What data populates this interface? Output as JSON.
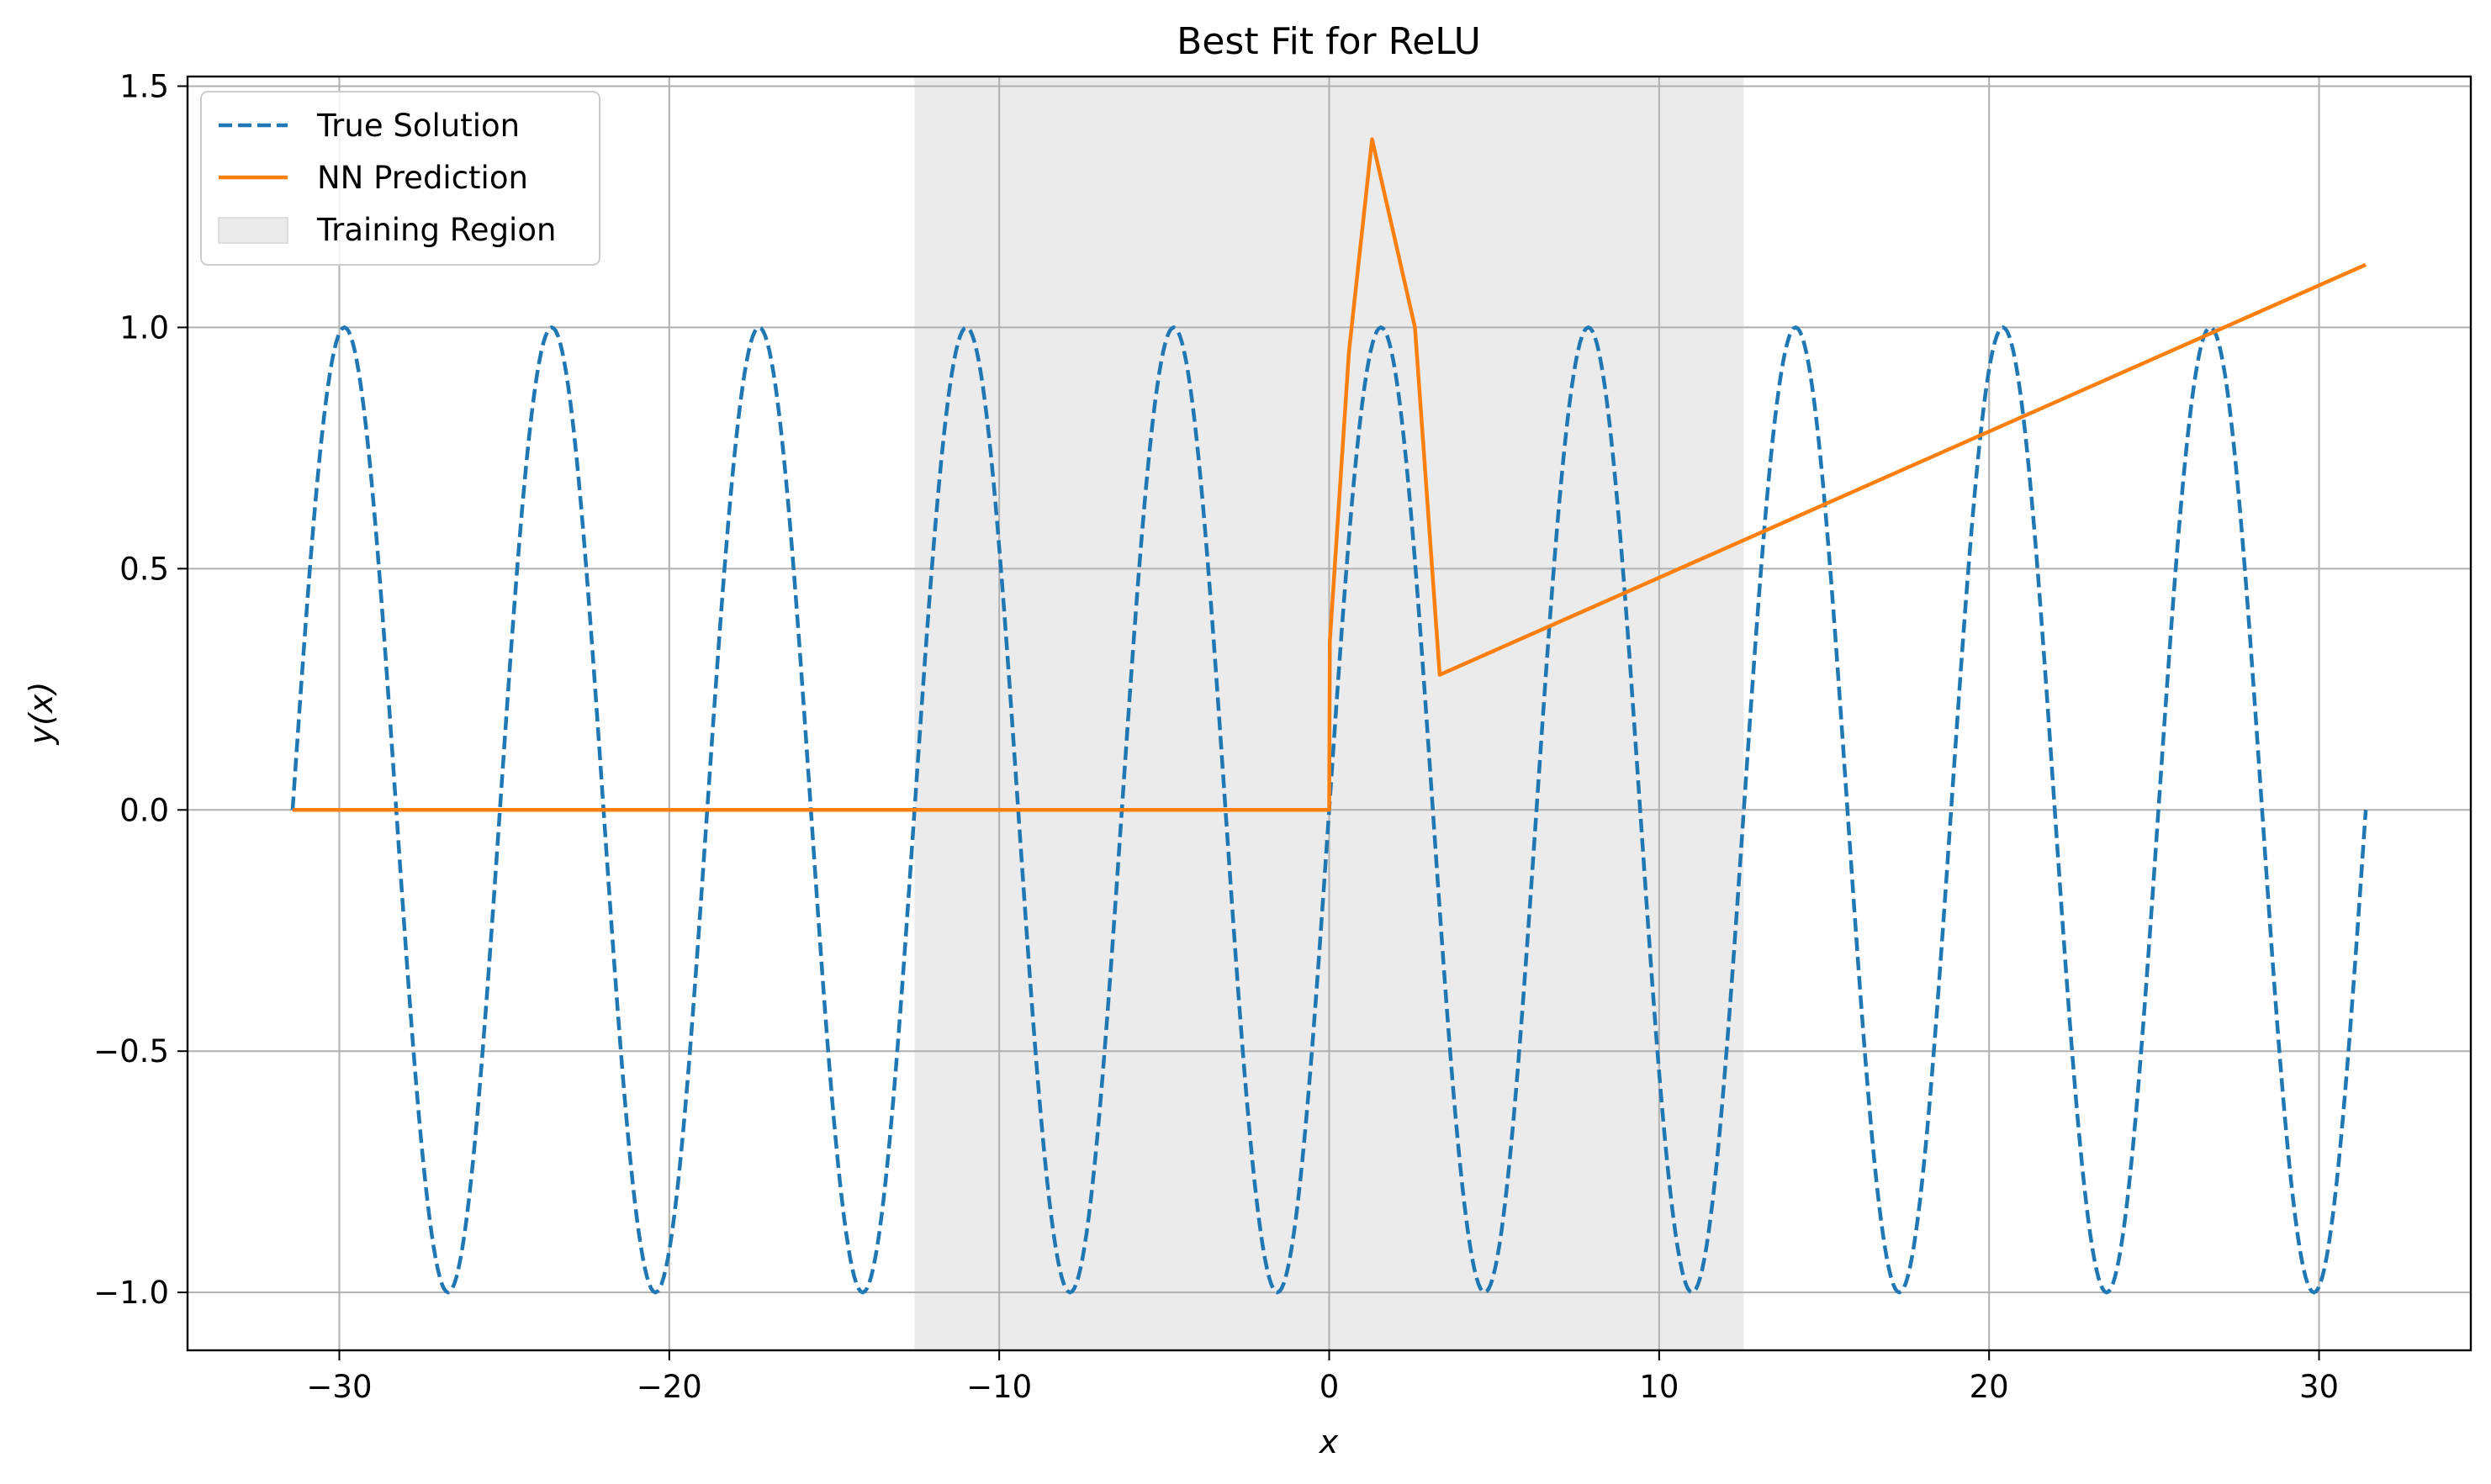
{
  "chart_data": {
    "type": "line",
    "title": "Best Fit for ReLU",
    "xlabel": "x",
    "ylabel": "y(x)",
    "xlim": [
      -34.6,
      34.6
    ],
    "ylim": [
      -1.12,
      1.52
    ],
    "grid": true,
    "legend_position": "top-left",
    "x_ticks": [
      -30,
      -20,
      -10,
      0,
      10,
      20,
      30
    ],
    "y_ticks": [
      -1.0,
      -0.5,
      0.0,
      0.5,
      1.0,
      1.5
    ],
    "x_tick_labels": [
      "−30",
      "−20",
      "−10",
      "0",
      "10",
      "20",
      "30"
    ],
    "y_tick_labels": [
      "−1.0",
      "−0.5",
      "0.0",
      "0.5",
      "1.0",
      "1.5"
    ],
    "training_region": {
      "name": "Training Region",
      "x_start": -12.566,
      "x_end": 12.566,
      "color": "#ebebeb"
    },
    "series": [
      {
        "name": "True Solution",
        "style": "dashed",
        "color": "#1f77b4",
        "function": "sin(x)",
        "x_range": [
          -31.416,
          31.416
        ],
        "samples": 1000
      },
      {
        "name": "NN Prediction",
        "style": "solid",
        "color": "#ff7f0e",
        "x": [
          -31.416,
          0.0,
          0.02,
          0.6,
          1.3,
          2.6,
          3.35,
          31.416
        ],
        "y": [
          0.0,
          0.0,
          0.35,
          0.95,
          1.39,
          1.0,
          0.28,
          1.13
        ]
      }
    ]
  }
}
